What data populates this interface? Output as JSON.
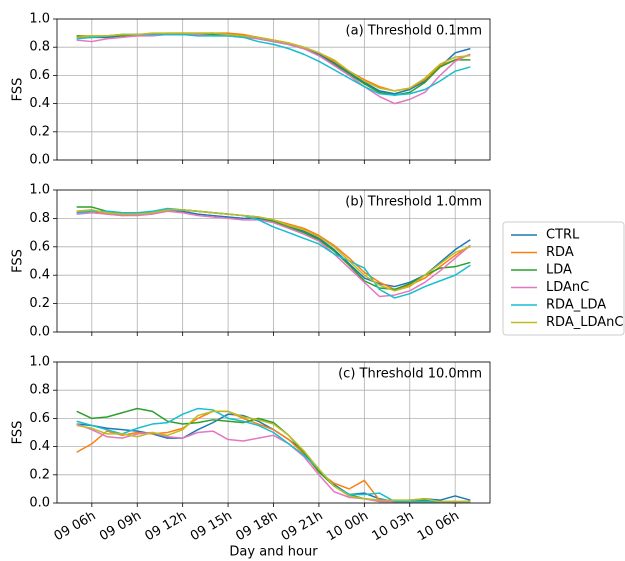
{
  "chart_data": [
    {
      "type": "line",
      "annotation": "(a) Threshold 0.1mm",
      "ylabel": "FSS",
      "x": [
        5,
        6,
        7,
        8,
        9,
        10,
        11,
        12,
        13,
        14,
        15,
        16,
        17,
        18,
        19,
        20,
        21,
        22,
        23,
        24,
        25,
        26,
        27,
        28,
        29,
        30,
        31
      ],
      "xlim": [
        3.7,
        32.3
      ],
      "ylim": [
        0,
        1
      ],
      "yticks": [
        {
          "value": 0,
          "label": "0.0"
        },
        {
          "value": 0.2,
          "label": "0.2"
        },
        {
          "value": 0.4,
          "label": "0.4"
        },
        {
          "value": 0.6,
          "label": "0.6"
        },
        {
          "value": 0.8,
          "label": "0.8"
        },
        {
          "value": 1,
          "label": "1.0"
        }
      ],
      "grid": true,
      "series": [
        {
          "name": "CTRL",
          "color": "#1f77b4",
          "values": [
            0.87,
            0.87,
            0.87,
            0.88,
            0.89,
            0.89,
            0.89,
            0.89,
            0.89,
            0.9,
            0.89,
            0.88,
            0.86,
            0.84,
            0.82,
            0.79,
            0.75,
            0.69,
            0.62,
            0.55,
            0.49,
            0.47,
            0.5,
            0.56,
            0.66,
            0.76,
            0.79
          ]
        },
        {
          "name": "RDA",
          "color": "#ff7f0e",
          "values": [
            0.88,
            0.88,
            0.88,
            0.89,
            0.89,
            0.89,
            0.9,
            0.9,
            0.9,
            0.9,
            0.9,
            0.89,
            0.87,
            0.85,
            0.83,
            0.8,
            0.76,
            0.7,
            0.63,
            0.57,
            0.52,
            0.49,
            0.51,
            0.57,
            0.67,
            0.71,
            0.75
          ]
        },
        {
          "name": "LDA",
          "color": "#2ca02c",
          "values": [
            0.88,
            0.87,
            0.88,
            0.88,
            0.89,
            0.89,
            0.89,
            0.89,
            0.89,
            0.89,
            0.89,
            0.88,
            0.86,
            0.84,
            0.82,
            0.79,
            0.74,
            0.68,
            0.61,
            0.54,
            0.48,
            0.46,
            0.48,
            0.55,
            0.66,
            0.71,
            0.71
          ]
        },
        {
          "name": "LDAnC",
          "color": "#e377c2",
          "values": [
            0.85,
            0.84,
            0.86,
            0.87,
            0.88,
            0.88,
            0.89,
            0.89,
            0.89,
            0.88,
            0.88,
            0.87,
            0.86,
            0.84,
            0.82,
            0.79,
            0.74,
            0.67,
            0.6,
            0.52,
            0.45,
            0.4,
            0.43,
            0.48,
            0.6,
            0.7,
            0.75
          ]
        },
        {
          "name": "RDA_LDA",
          "color": "#17becf",
          "values": [
            0.86,
            0.87,
            0.88,
            0.89,
            0.89,
            0.89,
            0.89,
            0.89,
            0.88,
            0.88,
            0.88,
            0.87,
            0.84,
            0.82,
            0.79,
            0.75,
            0.7,
            0.64,
            0.58,
            0.52,
            0.47,
            0.46,
            0.47,
            0.5,
            0.56,
            0.63,
            0.66
          ]
        },
        {
          "name": "RDA_LDAnC",
          "color": "#bcbd22",
          "values": [
            0.87,
            0.88,
            0.88,
            0.89,
            0.89,
            0.9,
            0.9,
            0.9,
            0.9,
            0.9,
            0.89,
            0.88,
            0.87,
            0.85,
            0.83,
            0.8,
            0.76,
            0.71,
            0.63,
            0.56,
            0.51,
            0.49,
            0.51,
            0.58,
            0.68,
            0.73,
            0.74
          ]
        }
      ]
    },
    {
      "type": "line",
      "annotation": "(b) Threshold 1.0mm",
      "ylabel": "FSS",
      "x": [
        5,
        6,
        7,
        8,
        9,
        10,
        11,
        12,
        13,
        14,
        15,
        16,
        17,
        18,
        19,
        20,
        21,
        22,
        23,
        24,
        25,
        26,
        27,
        28,
        29,
        30,
        31
      ],
      "xlim": [
        3.7,
        32.3
      ],
      "ylim": [
        0,
        1
      ],
      "yticks": [
        {
          "value": 0,
          "label": "0.0"
        },
        {
          "value": 0.2,
          "label": "0.2"
        },
        {
          "value": 0.4,
          "label": "0.4"
        },
        {
          "value": 0.6,
          "label": "0.6"
        },
        {
          "value": 0.8,
          "label": "0.8"
        },
        {
          "value": 1,
          "label": "1.0"
        }
      ],
      "grid": true,
      "series": [
        {
          "color": "#1f77b4",
          "values": [
            0.84,
            0.85,
            0.84,
            0.83,
            0.83,
            0.84,
            0.86,
            0.85,
            0.83,
            0.82,
            0.81,
            0.8,
            0.8,
            0.78,
            0.74,
            0.71,
            0.66,
            0.58,
            0.48,
            0.38,
            0.34,
            0.32,
            0.35,
            0.4,
            0.49,
            0.58,
            0.65
          ]
        },
        {
          "color": "#ff7f0e",
          "values": [
            0.85,
            0.86,
            0.83,
            0.82,
            0.83,
            0.84,
            0.86,
            0.86,
            0.85,
            0.84,
            0.83,
            0.82,
            0.81,
            0.79,
            0.76,
            0.73,
            0.68,
            0.61,
            0.52,
            0.42,
            0.35,
            0.3,
            0.33,
            0.38,
            0.46,
            0.54,
            0.61
          ]
        },
        {
          "color": "#2ca02c",
          "values": [
            0.88,
            0.88,
            0.85,
            0.84,
            0.84,
            0.84,
            0.86,
            0.86,
            0.85,
            0.84,
            0.83,
            0.82,
            0.81,
            0.78,
            0.74,
            0.7,
            0.65,
            0.57,
            0.47,
            0.36,
            0.31,
            0.3,
            0.34,
            0.4,
            0.45,
            0.46,
            0.49
          ]
        },
        {
          "color": "#e377c2",
          "values": [
            0.83,
            0.84,
            0.83,
            0.82,
            0.82,
            0.83,
            0.85,
            0.84,
            0.82,
            0.81,
            0.8,
            0.79,
            0.79,
            0.77,
            0.73,
            0.69,
            0.64,
            0.55,
            0.45,
            0.35,
            0.25,
            0.26,
            0.29,
            0.35,
            0.43,
            0.52,
            0.61
          ]
        },
        {
          "color": "#17becf",
          "values": [
            0.84,
            0.85,
            0.85,
            0.84,
            0.84,
            0.85,
            0.87,
            0.86,
            0.85,
            0.84,
            0.83,
            0.82,
            0.79,
            0.74,
            0.7,
            0.66,
            0.62,
            0.55,
            0.5,
            0.45,
            0.3,
            0.24,
            0.27,
            0.32,
            0.36,
            0.4,
            0.47
          ]
        },
        {
          "color": "#bcbd22",
          "values": [
            0.85,
            0.86,
            0.84,
            0.83,
            0.83,
            0.84,
            0.86,
            0.86,
            0.85,
            0.84,
            0.83,
            0.82,
            0.81,
            0.79,
            0.75,
            0.72,
            0.67,
            0.6,
            0.5,
            0.4,
            0.33,
            0.29,
            0.32,
            0.4,
            0.48,
            0.56,
            0.6
          ]
        }
      ]
    },
    {
      "type": "line",
      "annotation": "(c) Threshold 10.0mm",
      "ylabel": "FSS",
      "xlabel": "Day and hour",
      "x": [
        5,
        6,
        7,
        8,
        9,
        10,
        11,
        12,
        13,
        14,
        15,
        16,
        17,
        18,
        19,
        20,
        21,
        22,
        23,
        24,
        25,
        26,
        27,
        28,
        29,
        30,
        31
      ],
      "xlim": [
        3.7,
        32.3
      ],
      "ylim": [
        0,
        1
      ],
      "xticks": [
        {
          "value": 6,
          "label": "09 06h"
        },
        {
          "value": 9,
          "label": "09 09h"
        },
        {
          "value": 12,
          "label": "09 12h"
        },
        {
          "value": 15,
          "label": "09 15h"
        },
        {
          "value": 18,
          "label": "09 18h"
        },
        {
          "value": 21,
          "label": "09 21h"
        },
        {
          "value": 24,
          "label": "10 00h"
        },
        {
          "value": 27,
          "label": "10 03h"
        },
        {
          "value": 30,
          "label": "10 06h"
        }
      ],
      "yticks": [
        {
          "value": 0,
          "label": "0.0"
        },
        {
          "value": 0.2,
          "label": "0.2"
        },
        {
          "value": 0.4,
          "label": "0.4"
        },
        {
          "value": 0.6,
          "label": "0.6"
        },
        {
          "value": 0.8,
          "label": "0.8"
        },
        {
          "value": 1,
          "label": "1.0"
        }
      ],
      "grid": true,
      "series": [
        {
          "color": "#1f77b4",
          "values": [
            0.56,
            0.55,
            0.53,
            0.52,
            0.51,
            0.49,
            0.46,
            0.46,
            0.52,
            0.57,
            0.63,
            0.62,
            0.58,
            0.52,
            0.45,
            0.37,
            0.23,
            0.13,
            0.06,
            0.07,
            0.03,
            0.01,
            0.02,
            0.03,
            0.02,
            0.05,
            0.02
          ]
        },
        {
          "color": "#ff7f0e",
          "values": [
            0.36,
            0.42,
            0.51,
            0.48,
            0.5,
            0.49,
            0.5,
            0.53,
            0.6,
            0.65,
            0.65,
            0.6,
            0.56,
            0.52,
            0.45,
            0.35,
            0.22,
            0.14,
            0.1,
            0.16,
            0.02,
            0.01,
            0.02,
            0.02,
            0.01,
            0.01,
            0.01
          ]
        },
        {
          "color": "#2ca02c",
          "values": [
            0.65,
            0.6,
            0.61,
            0.64,
            0.67,
            0.65,
            0.58,
            0.56,
            0.57,
            0.59,
            0.58,
            0.57,
            0.6,
            0.57,
            0.48,
            0.36,
            0.22,
            0.12,
            0.06,
            0.03,
            0.02,
            0.01,
            0.01,
            0.02,
            0.01,
            0.01,
            0.01
          ]
        },
        {
          "color": "#e377c2",
          "values": [
            0.56,
            0.52,
            0.47,
            0.46,
            0.49,
            0.5,
            0.47,
            0.46,
            0.5,
            0.51,
            0.45,
            0.44,
            0.46,
            0.48,
            0.42,
            0.33,
            0.2,
            0.08,
            0.04,
            0.03,
            0.01,
            0.01,
            0.01,
            0.01,
            0.01,
            0.0,
            0.01
          ]
        },
        {
          "color": "#17becf",
          "values": [
            0.58,
            0.55,
            0.52,
            0.49,
            0.53,
            0.56,
            0.57,
            0.63,
            0.67,
            0.66,
            0.6,
            0.58,
            0.55,
            0.5,
            0.42,
            0.34,
            0.24,
            0.12,
            0.06,
            0.06,
            0.07,
            0.01,
            0.01,
            0.01,
            0.01,
            0.01,
            0.01
          ]
        },
        {
          "color": "#bcbd22",
          "values": [
            0.55,
            0.53,
            0.49,
            0.49,
            0.47,
            0.5,
            0.48,
            0.52,
            0.62,
            0.65,
            0.65,
            0.61,
            0.59,
            0.56,
            0.48,
            0.37,
            0.24,
            0.12,
            0.05,
            0.03,
            0.02,
            0.02,
            0.02,
            0.03,
            0.01,
            0.01,
            0.01
          ]
        }
      ]
    }
  ]
}
